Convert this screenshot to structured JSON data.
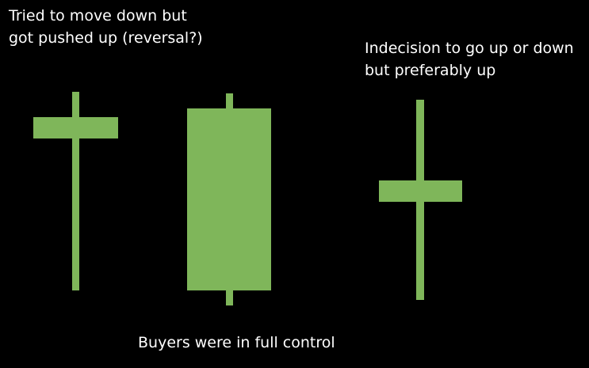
{
  "colors": {
    "background": "#000000",
    "text": "#ffffff",
    "candle": "#7fb65a"
  },
  "captions": {
    "reversal": {
      "line1": "Tried to move down but",
      "line2": "got pushed up (reversal?)"
    },
    "indecision": {
      "line1": "Indecision to go up or down",
      "line2": "but preferably up"
    },
    "buyers": {
      "text": "Buyers were in full control"
    }
  }
}
